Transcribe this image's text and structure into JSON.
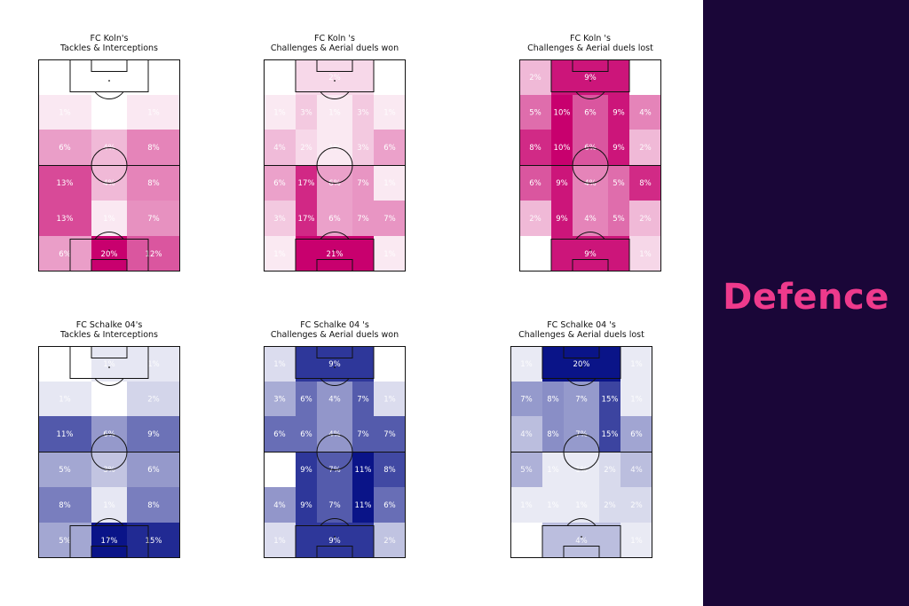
{
  "side_panel": {
    "title": "Defence"
  },
  "colors": {
    "panel_bg": "#1a0638",
    "title_accent": "#ee3a8c",
    "koln_colormap": "#c8006e",
    "schalke_colormap": "#0a1488"
  },
  "chart_data": [
    {
      "type": "heatmap",
      "team": "koln",
      "title_line1": "FC Koln's",
      "title_line2": "Tackles & Interceptions",
      "layout": "3-col",
      "rows": [
        [
          "0%",
          "0%",
          "0%"
        ],
        [
          "1%",
          "0%",
          "1%"
        ],
        [
          "6%",
          "4%",
          "8%"
        ],
        [
          "13%",
          "4%",
          "8%"
        ],
        [
          "13%",
          "1%",
          "7%"
        ],
        [
          "6%",
          "20%",
          "12%"
        ]
      ],
      "values": [
        [
          0,
          0,
          0
        ],
        [
          1,
          0,
          1
        ],
        [
          6,
          4,
          8
        ],
        [
          13,
          4,
          8
        ],
        [
          13,
          1,
          7
        ],
        [
          6,
          20,
          12
        ]
      ]
    },
    {
      "type": "heatmap",
      "team": "koln",
      "title_line1": "FC Koln 's",
      "title_line2": "Challenges & Aerial duels won",
      "layout": "5-col",
      "rows": [
        [
          "0%",
          "2%",
          "0%"
        ],
        [
          "1%",
          "3%",
          "1%",
          "3%",
          "1%"
        ],
        [
          "4%",
          "2%",
          "1%",
          "3%",
          "6%"
        ],
        [
          "6%",
          "17%",
          "6%",
          "7%",
          "1%"
        ],
        [
          "3%",
          "17%",
          "6%",
          "7%",
          "7%"
        ],
        [
          "1%",
          "21%",
          "1%"
        ]
      ],
      "values": [
        [
          0,
          2,
          0
        ],
        [
          1,
          3,
          1,
          3,
          1
        ],
        [
          4,
          2,
          1,
          3,
          6
        ],
        [
          6,
          17,
          6,
          7,
          1
        ],
        [
          3,
          17,
          6,
          7,
          7
        ],
        [
          1,
          21,
          1
        ]
      ]
    },
    {
      "type": "heatmap",
      "team": "koln",
      "title_line1": "FC Koln 's",
      "title_line2": "Challenges & Aerial duels lost",
      "layout": "5-col",
      "rows": [
        [
          "2%",
          "9%",
          "0%"
        ],
        [
          "5%",
          "10%",
          "6%",
          "9%",
          "4%"
        ],
        [
          "8%",
          "10%",
          "6%",
          "9%",
          "2%"
        ],
        [
          "6%",
          "9%",
          "4%",
          "5%",
          "8%"
        ],
        [
          "2%",
          "9%",
          "4%",
          "5%",
          "2%"
        ],
        [
          "0%",
          "9%",
          "1%"
        ]
      ],
      "values": [
        [
          2,
          9,
          0
        ],
        [
          5,
          10,
          6,
          9,
          4
        ],
        [
          8,
          10,
          6,
          9,
          2
        ],
        [
          6,
          9,
          4,
          5,
          8
        ],
        [
          2,
          9,
          4,
          5,
          2
        ],
        [
          0,
          9,
          1
        ]
      ]
    },
    {
      "type": "heatmap",
      "team": "schalke",
      "title_line1": "FC Schalke 04's",
      "title_line2": "Tackles & Interceptions",
      "layout": "3-col",
      "rows": [
        [
          "0%",
          "1%",
          "1%"
        ],
        [
          "1%",
          "0%",
          "2%"
        ],
        [
          "11%",
          "6%",
          "9%"
        ],
        [
          "5%",
          "3%",
          "6%"
        ],
        [
          "8%",
          "1%",
          "8%"
        ],
        [
          "5%",
          "17%",
          "15%"
        ]
      ],
      "values": [
        [
          0,
          1,
          1
        ],
        [
          1,
          0,
          2
        ],
        [
          11,
          6,
          9
        ],
        [
          5,
          3,
          6
        ],
        [
          8,
          1,
          8
        ],
        [
          5,
          17,
          15
        ]
      ]
    },
    {
      "type": "heatmap",
      "team": "schalke",
      "title_line1": "FC Schalke 04 's",
      "title_line2": "Challenges & Aerial duels won",
      "layout": "5-col",
      "rows": [
        [
          "1%",
          "9%",
          "0%"
        ],
        [
          "3%",
          "6%",
          "4%",
          "7%",
          "1%"
        ],
        [
          "6%",
          "6%",
          "4%",
          "7%",
          "7%"
        ],
        [
          "0%",
          "9%",
          "7%",
          "11%",
          "8%"
        ],
        [
          "4%",
          "9%",
          "7%",
          "11%",
          "6%"
        ],
        [
          "1%",
          "9%",
          "2%"
        ]
      ],
      "values": [
        [
          1,
          9,
          0
        ],
        [
          3,
          6,
          4,
          7,
          1
        ],
        [
          6,
          6,
          4,
          7,
          7
        ],
        [
          0,
          9,
          7,
          11,
          8
        ],
        [
          4,
          9,
          7,
          11,
          6
        ],
        [
          1,
          9,
          2
        ]
      ]
    },
    {
      "type": "heatmap",
      "team": "schalke",
      "title_line1": "FC Schalke 04 's",
      "title_line2": "Challenges & Aerial duels lost",
      "layout": "5-col",
      "rows": [
        [
          "1%",
          "20%",
          "1%"
        ],
        [
          "7%",
          "8%",
          "7%",
          "15%",
          "1%"
        ],
        [
          "4%",
          "8%",
          "7%",
          "15%",
          "6%"
        ],
        [
          "5%",
          "1%",
          "1%",
          "2%",
          "4%"
        ],
        [
          "1%",
          "1%",
          "1%",
          "2%",
          "2%"
        ],
        [
          "0%",
          "4%",
          "1%"
        ]
      ],
      "values": [
        [
          1,
          20,
          1
        ],
        [
          7,
          8,
          7,
          15,
          1
        ],
        [
          4,
          8,
          7,
          15,
          6
        ],
        [
          5,
          1,
          1,
          2,
          4
        ],
        [
          1,
          1,
          1,
          2,
          2
        ],
        [
          0,
          4,
          1
        ]
      ]
    }
  ]
}
